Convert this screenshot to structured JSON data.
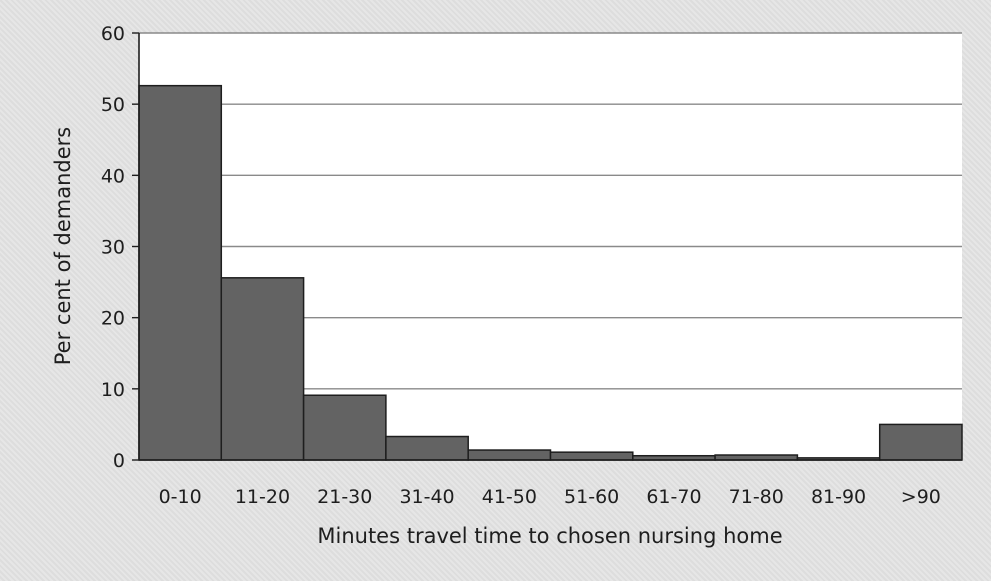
{
  "chart_data": {
    "type": "bar",
    "title": "",
    "xlabel": "Minutes travel time to chosen nursing home",
    "ylabel": "Per cent of demanders",
    "categories": [
      "0-10",
      "11-20",
      "21-30",
      "31-40",
      "41-50",
      "51-60",
      "61-70",
      "71-80",
      "81-90",
      ">90"
    ],
    "values": [
      52.6,
      25.6,
      9.1,
      3.3,
      1.4,
      1.1,
      0.6,
      0.7,
      0.3,
      5.0
    ],
    "ylim": [
      0,
      60
    ],
    "yticks": [
      0,
      10,
      20,
      30,
      40,
      50,
      60
    ],
    "grid": true,
    "bar_color": "#636363",
    "bar_edge_color": "#1e1e1e",
    "plot_bg": "#ffffff"
  }
}
